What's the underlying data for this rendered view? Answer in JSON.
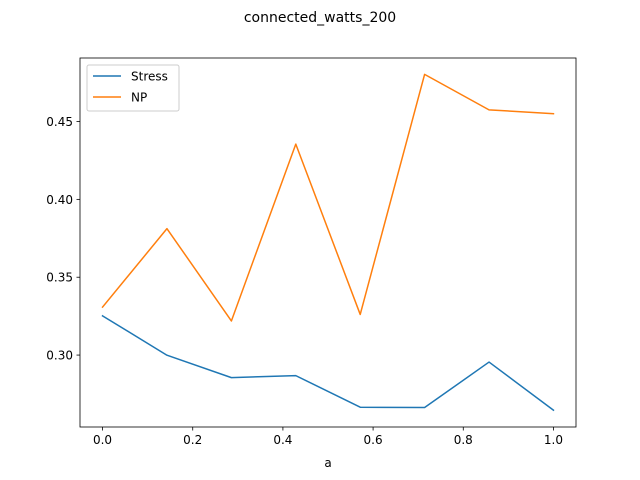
{
  "chart_data": {
    "type": "line",
    "title": "connected_watts_200",
    "xlabel": "a",
    "ylabel": "",
    "xlim": [
      -0.05,
      1.05
    ],
    "ylim": [
      0.2538,
      0.4908
    ],
    "xticks": [
      0.0,
      0.2,
      0.4,
      0.6,
      0.8,
      1.0
    ],
    "xtick_labels": [
      "0.0",
      "0.2",
      "0.4",
      "0.6",
      "0.8",
      "1.0"
    ],
    "yticks": [
      0.3,
      0.35,
      0.4,
      0.45
    ],
    "ytick_labels": [
      "0.30",
      "0.35",
      "0.40",
      "0.45"
    ],
    "x": [
      0.0,
      0.142857,
      0.285714,
      0.428571,
      0.571429,
      0.714286,
      0.857143,
      1.0
    ],
    "series": [
      {
        "name": "Stress",
        "color": "#1f77b4",
        "values": [
          0.3252,
          0.2999,
          0.2855,
          0.2868,
          0.2665,
          0.2663,
          0.2955,
          0.2646
        ]
      },
      {
        "name": "NP",
        "color": "#ff7f0e",
        "values": [
          0.3308,
          0.3812,
          0.3219,
          0.4355,
          0.3261,
          0.4803,
          0.4575,
          0.455
        ]
      }
    ],
    "legend_position": "upper-left",
    "grid": false
  }
}
